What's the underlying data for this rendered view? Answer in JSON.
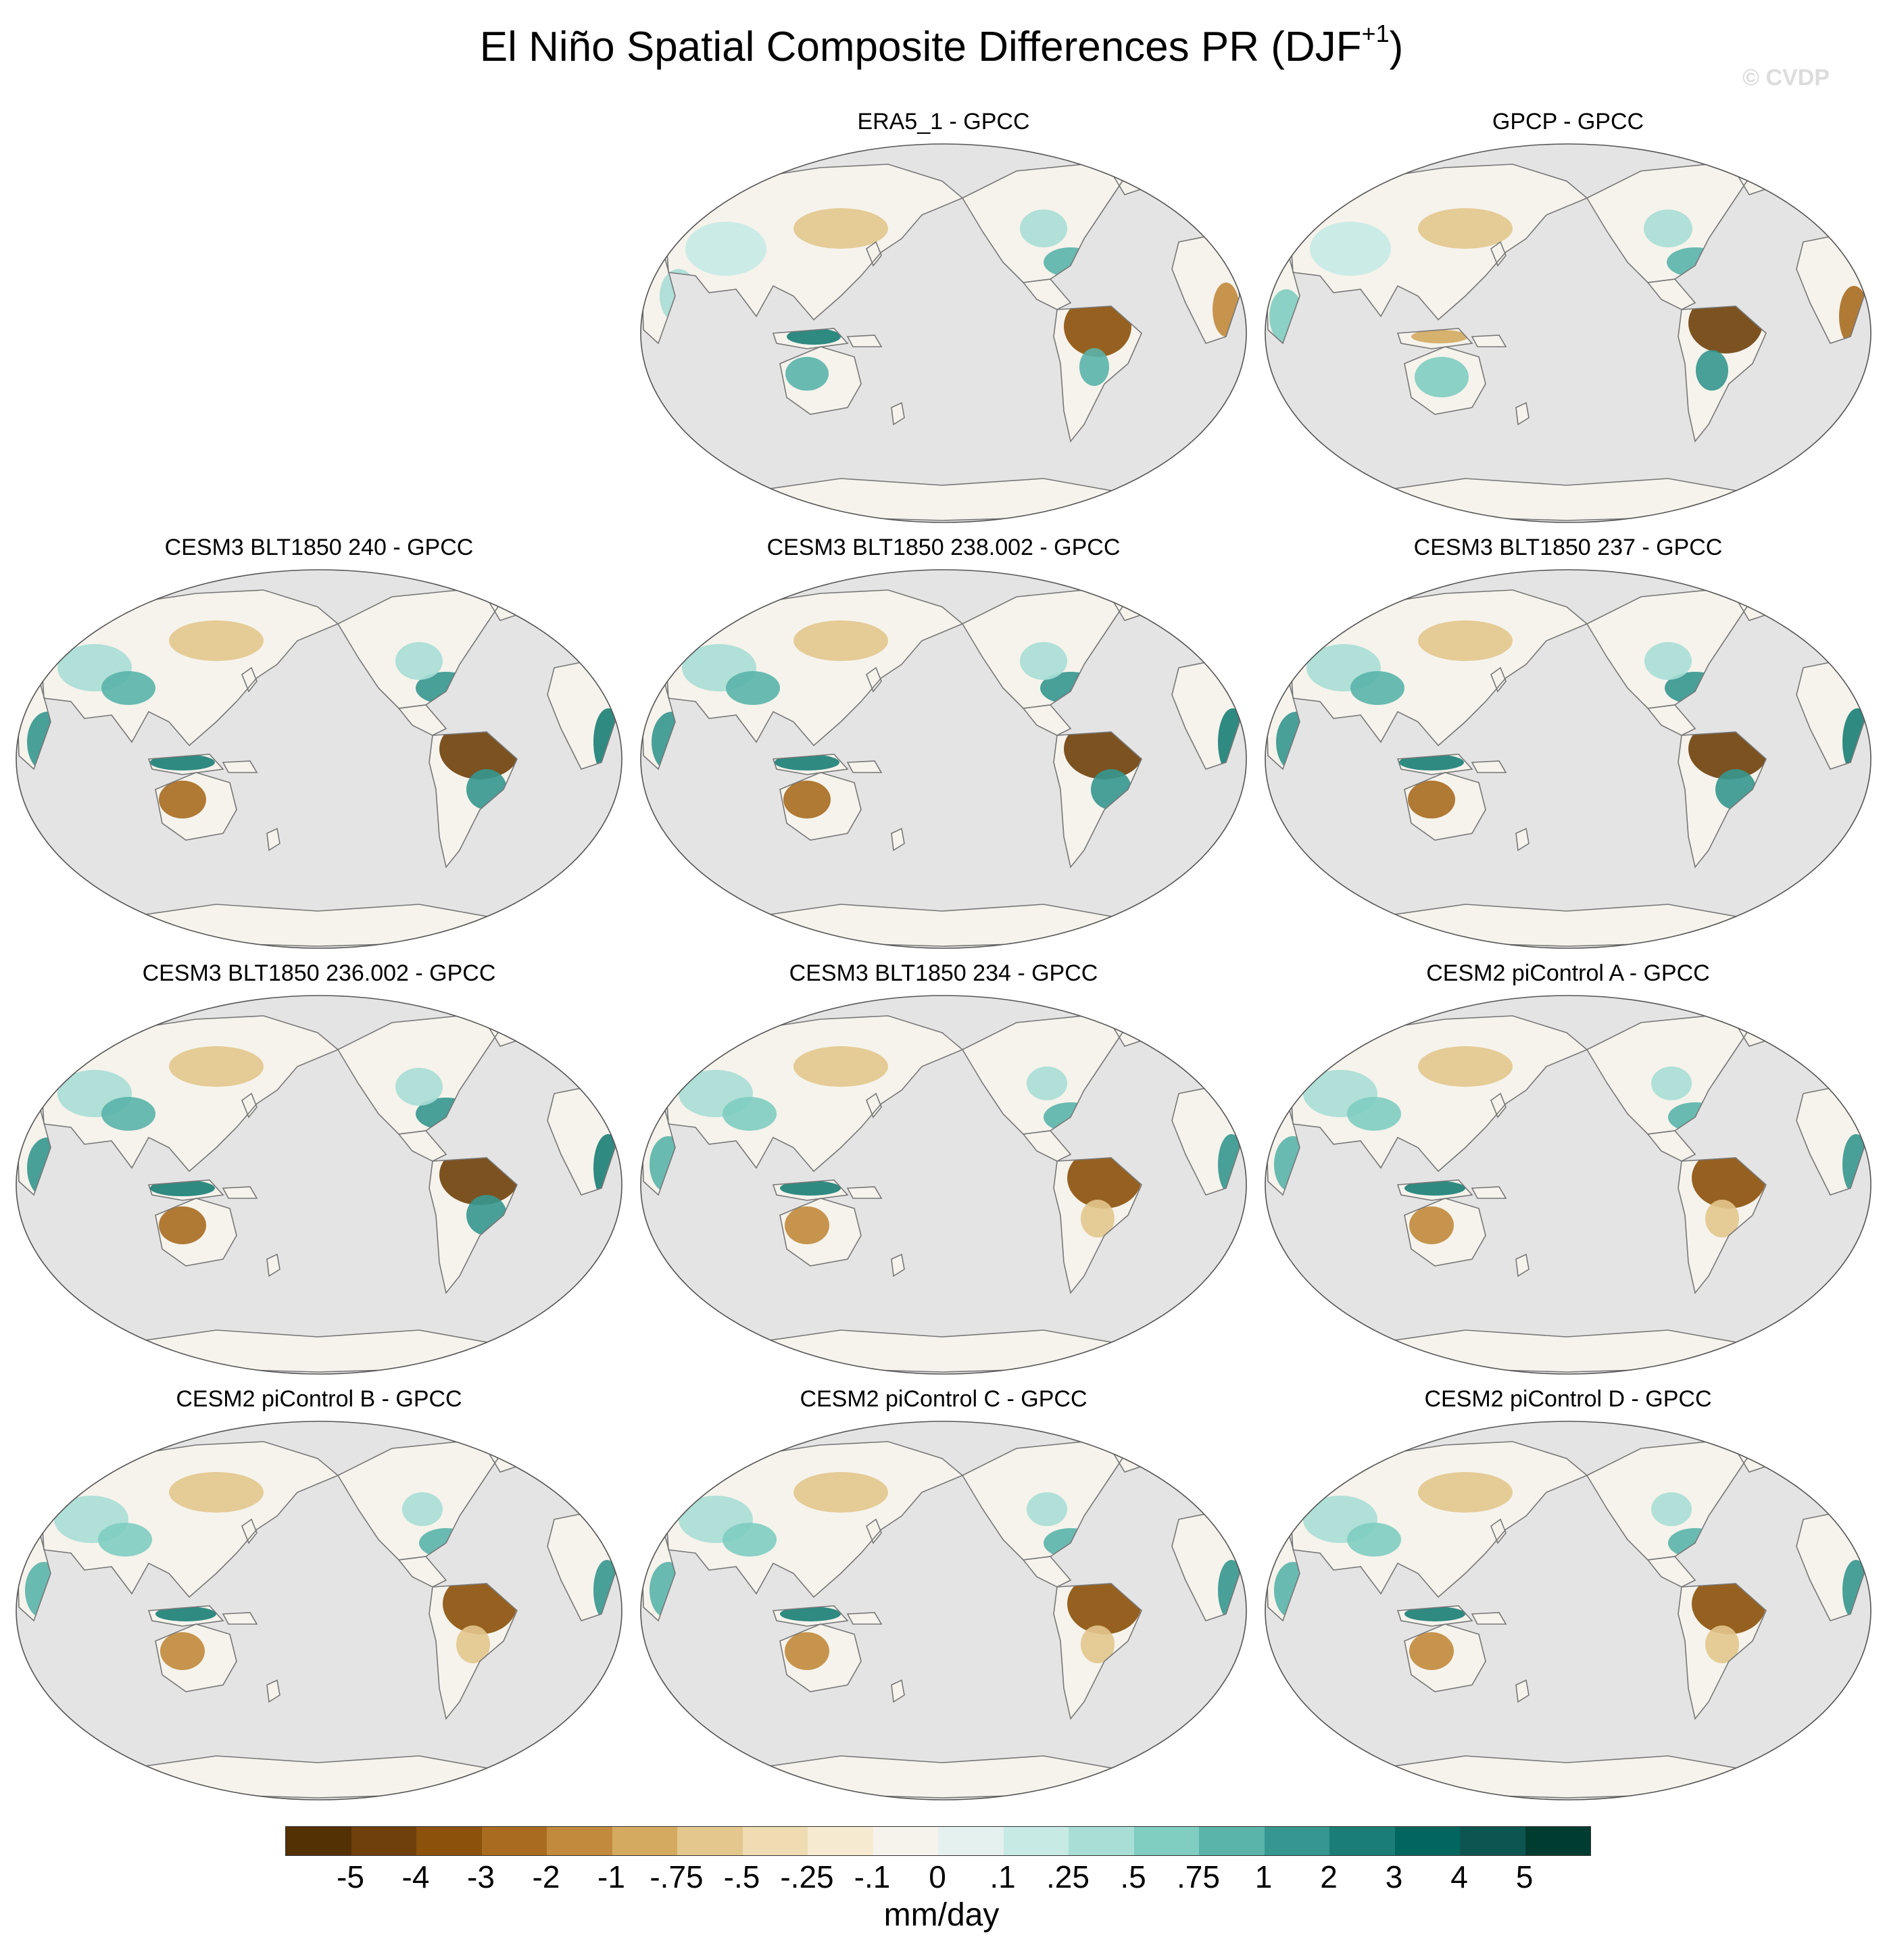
{
  "title": {
    "main": "El Niño Spatial Composite Differences PR (DJF",
    "superscript": "+1",
    "close": ")"
  },
  "watermark": "© CVDP",
  "panels": [
    {
      "label": "ERA5_1 - GPCC",
      "pattern": "era5"
    },
    {
      "label": "GPCP - GPCC",
      "pattern": "gpcp"
    },
    {
      "label": "CESM3 BLT1850 240 - GPCC",
      "pattern": "strong"
    },
    {
      "label": "CESM3 BLT1850 238.002 - GPCC",
      "pattern": "strong"
    },
    {
      "label": "CESM3 BLT1850 237 - GPCC",
      "pattern": "strong"
    },
    {
      "label": "CESM3 BLT1850 236.002 - GPCC",
      "pattern": "strong"
    },
    {
      "label": "CESM3 BLT1850 234 - GPCC",
      "pattern": "moderate"
    },
    {
      "label": "CESM2 piControl A - GPCC",
      "pattern": "moderate"
    },
    {
      "label": "CESM2 piControl B - GPCC",
      "pattern": "moderate"
    },
    {
      "label": "CESM2 piControl C - GPCC",
      "pattern": "moderate"
    },
    {
      "label": "CESM2 piControl D - GPCC",
      "pattern": "moderate"
    }
  ],
  "colorbar": {
    "units": "mm/day",
    "labels": [
      "-5",
      "-4",
      "-3",
      "-2",
      "-1",
      "-.75",
      "-.5",
      "-.25",
      "-.1",
      "0",
      ".1",
      ".25",
      ".5",
      ".75",
      "1",
      "2",
      "3",
      "4",
      "5"
    ],
    "colors": [
      "#543005",
      "#6f400b",
      "#8c510a",
      "#a96b20",
      "#c28a3c",
      "#d4aa61",
      "#e3c78d",
      "#efdcb2",
      "#f6ead0",
      "#f5f3ec",
      "#e5f1ee",
      "#c7eae5",
      "#a8ded6",
      "#80cdc1",
      "#5ab4aa",
      "#35978f",
      "#1a7e76",
      "#01665e",
      "#0d5550",
      "#003c30"
    ]
  },
  "map_colors": {
    "ocean": "#e4e4e4",
    "land": "#f5f3ec",
    "coast": "#777777"
  }
}
